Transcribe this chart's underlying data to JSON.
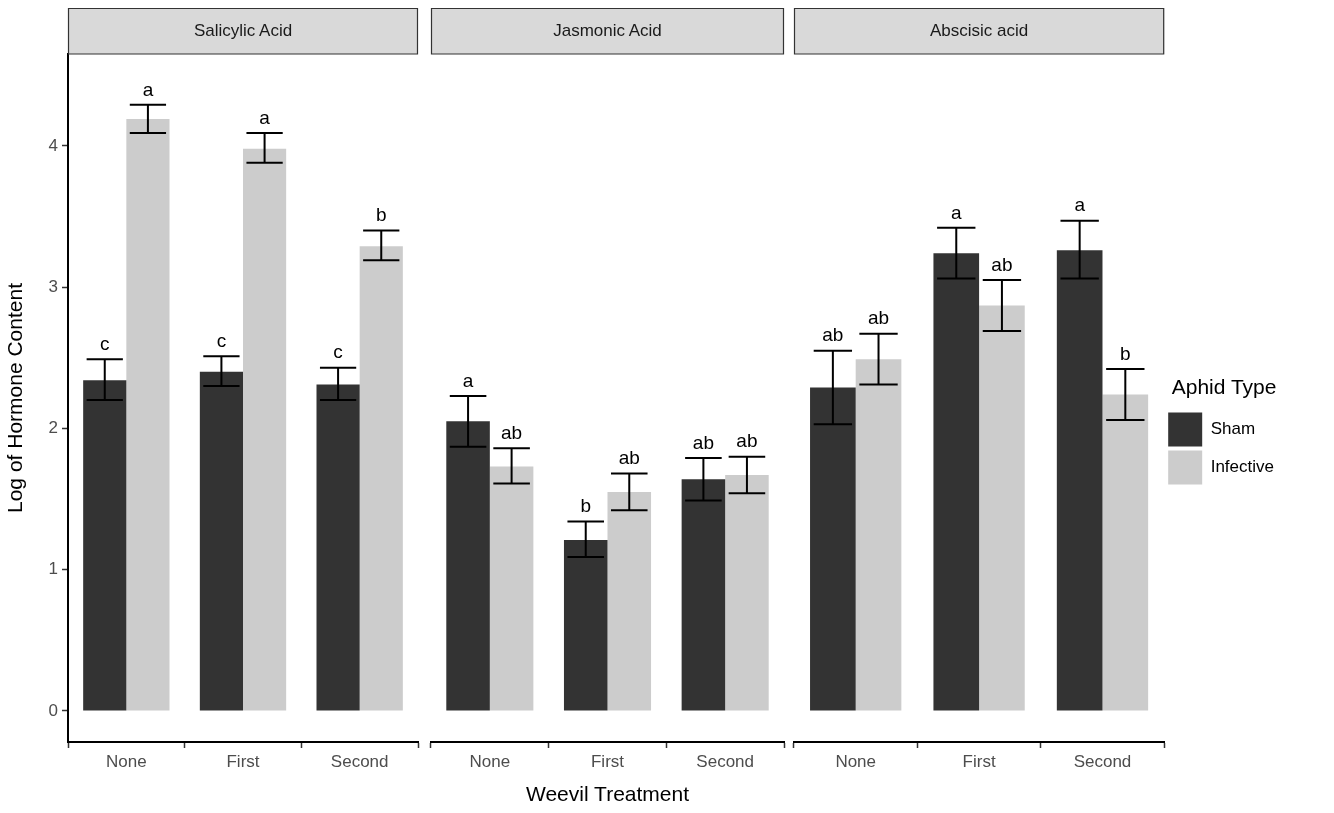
{
  "chart_data": [
    {
      "type": "bar",
      "title": "Salicylic Acid",
      "ylabel": "Log of Hormone Content",
      "categories": [
        "None",
        "First",
        "Second"
      ],
      "ylim": [
        -0.22,
        4.65
      ],
      "yticks": [
        0,
        1,
        2,
        3,
        4
      ],
      "grid": false,
      "legend": false,
      "series": [
        {
          "color": "#333333",
          "values": [
            2.34,
            2.4,
            2.31
          ],
          "errors": [
            [
              2.2,
              2.49
            ],
            [
              2.3,
              2.51
            ],
            [
              2.2,
              2.43
            ]
          ]
        },
        {
          "color": "#cccccc",
          "values": [
            4.19,
            3.98,
            3.29
          ],
          "errors": [
            [
              4.09,
              4.29
            ],
            [
              3.88,
              4.09
            ],
            [
              3.19,
              3.4
            ]
          ]
        }
      ],
      "annotations": [
        {
          "text": "c",
          "x": "None",
          "y": 2.49
        },
        {
          "text": "a",
          "x": "None",
          "y": 4.29
        },
        {
          "text": "c",
          "x": "First",
          "y": 2.51
        },
        {
          "text": "a",
          "x": "First",
          "y": 4.09
        },
        {
          "text": "c",
          "x": "Second",
          "y": 2.43
        },
        {
          "text": "b",
          "x": "Second",
          "y": 3.4
        }
      ]
    },
    {
      "type": "bar",
      "title": "Jasmonic Acid",
      "xlabel": "Weevil Treatment",
      "categories": [
        "None",
        "First",
        "Second"
      ],
      "yticks": [
        0,
        1,
        2,
        3,
        4
      ],
      "tick_labels": "x",
      "grid": false,
      "legend": false,
      "series": [
        {
          "color": "#333333",
          "values": [
            2.05,
            1.21,
            1.64
          ],
          "errors": [
            [
              1.87,
              2.23
            ],
            [
              1.09,
              1.34
            ],
            [
              1.49,
              1.79
            ]
          ]
        },
        {
          "color": "#cccccc",
          "values": [
            1.73,
            1.55,
            1.67
          ],
          "errors": [
            [
              1.61,
              1.86
            ],
            [
              1.42,
              1.68
            ],
            [
              1.54,
              1.8
            ]
          ]
        }
      ],
      "annotations": [
        {
          "text": "a",
          "x": "None",
          "y": 2.23
        },
        {
          "text": "ab",
          "x": "None",
          "y": 1.86
        },
        {
          "text": "b",
          "x": "First",
          "y": 1.34
        },
        {
          "text": "ab",
          "x": "First",
          "y": 1.68
        },
        {
          "text": "ab",
          "x": "Second",
          "y": 1.79
        },
        {
          "text": "ab",
          "x": "Second",
          "y": 1.8
        }
      ]
    },
    {
      "type": "bar",
      "title": "Abscisic acid",
      "categories": [
        "None",
        "First",
        "Second"
      ],
      "yticks": [
        0,
        1,
        2,
        3,
        4
      ],
      "tick_labels": "x",
      "grid": false,
      "legend": "right",
      "legend_title": "Aphid Type",
      "series": [
        {
          "name": "Sham",
          "color": "#333333",
          "values": [
            2.29,
            3.24,
            3.26
          ],
          "errors": [
            [
              2.03,
              2.55
            ],
            [
              3.06,
              3.42
            ],
            [
              3.06,
              3.47
            ]
          ]
        },
        {
          "name": "Infective",
          "color": "#cccccc",
          "values": [
            2.49,
            2.87,
            2.24
          ],
          "errors": [
            [
              2.31,
              2.67
            ],
            [
              2.69,
              3.05
            ],
            [
              2.06,
              2.42
            ]
          ]
        }
      ],
      "annotations": [
        {
          "text": "ab",
          "x": "None",
          "y": 2.55
        },
        {
          "text": "ab",
          "x": "None",
          "y": 2.67
        },
        {
          "text": "a",
          "x": "First",
          "y": 3.42
        },
        {
          "text": "ab",
          "x": "First",
          "y": 3.05
        },
        {
          "text": "a",
          "x": "Second",
          "y": 3.47
        },
        {
          "text": "b",
          "x": "Second",
          "y": 2.42
        }
      ]
    }
  ]
}
